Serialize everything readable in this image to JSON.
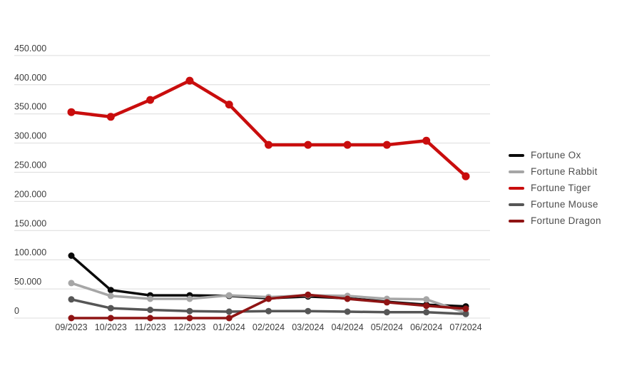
{
  "chart_data": {
    "type": "line",
    "title": "",
    "xlabel": "",
    "ylabel": "",
    "categories": [
      "09/2023",
      "10/2023",
      "11/2023",
      "12/2023",
      "01/2024",
      "02/2024",
      "03/2024",
      "04/2024",
      "05/2024",
      "06/2024",
      "07/2024"
    ],
    "series": [
      {
        "name": "Fortune Ox",
        "color": "#0a0a0a",
        "values": [
          107000,
          48000,
          39000,
          39000,
          38000,
          34000,
          37000,
          34000,
          28000,
          23000,
          20000
        ]
      },
      {
        "name": "Fortune Rabbit",
        "color": "#a6a6a6",
        "values": [
          60000,
          38000,
          33000,
          33000,
          39000,
          36000,
          39000,
          38000,
          33000,
          32000,
          9000
        ]
      },
      {
        "name": "Fortune Tiger",
        "color": "#c90d0d",
        "values": [
          353000,
          345000,
          374000,
          407000,
          366000,
          297000,
          297000,
          297000,
          297000,
          304000,
          243000
        ]
      },
      {
        "name": "Fortune Mouse",
        "color": "#565656",
        "values": [
          32000,
          17000,
          14000,
          12000,
          11000,
          12000,
          12000,
          11000,
          10000,
          10000,
          7000
        ]
      },
      {
        "name": "Fortune Dragon",
        "color": "#8f1414",
        "values": [
          0,
          0,
          0,
          0,
          0,
          33000,
          40000,
          33000,
          27000,
          21000,
          16000
        ]
      }
    ],
    "ylim": [
      0,
      450000
    ],
    "y_tick_step": 50000,
    "y_tick_labels": [
      "0",
      "50.000",
      "100.000",
      "150.000",
      "200.000",
      "250.000",
      "300.000",
      "350.000",
      "400.000",
      "450.000"
    ],
    "grid": true,
    "legend_position": "right",
    "legend_entries": [
      "Fortune Ox",
      "Fortune Rabbit",
      "Fortune Tiger",
      "Fortune Mouse",
      "Fortune Dragon"
    ]
  }
}
